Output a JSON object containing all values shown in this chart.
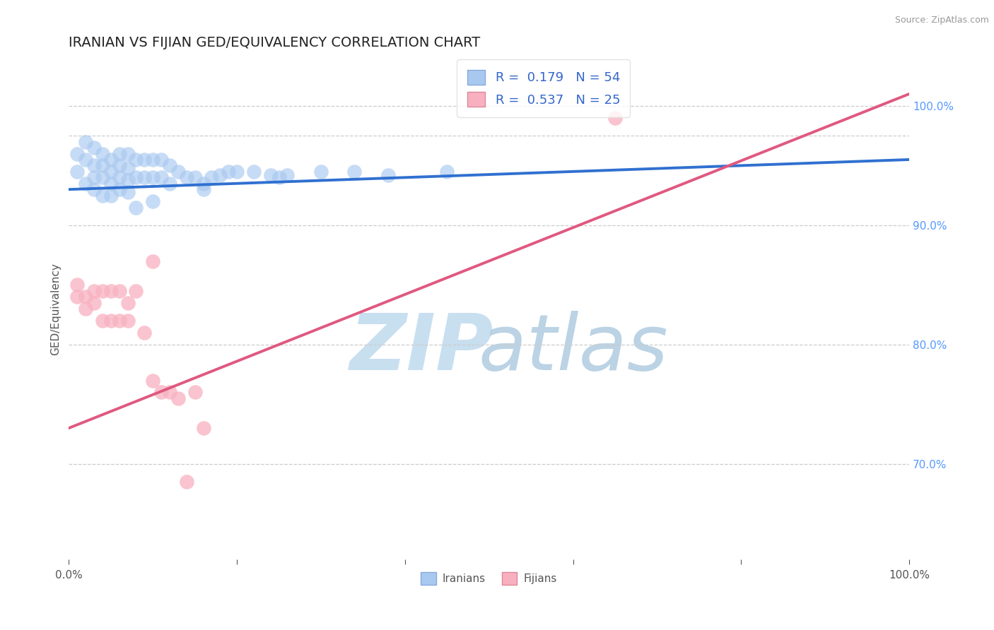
{
  "title": "IRANIAN VS FIJIAN GED/EQUIVALENCY CORRELATION CHART",
  "source": "Source: ZipAtlas.com",
  "ylabel": "GED/Equivalency",
  "right_ytick_values": [
    0.7,
    0.8,
    0.9,
    1.0
  ],
  "right_ytick_labels": [
    "70.0%",
    "80.0%",
    "90.0%",
    "100.0%"
  ],
  "iranian_R": 0.179,
  "iranian_N": 54,
  "fijian_R": 0.537,
  "fijian_N": 25,
  "iranian_color": "#a8c8f0",
  "fijian_color": "#f8b0c0",
  "iranian_line_color": "#3070d0",
  "fijian_line_color": "#e05880",
  "background_color": "#ffffff",
  "grid_color": "#cccccc",
  "title_fontsize": 14,
  "legend_fontsize": 13,
  "watermark_zip_color": "#c8dff0",
  "watermark_atlas_color": "#b0cce0",
  "xlim": [
    0.0,
    1.0
  ],
  "ylim": [
    0.62,
    1.04
  ],
  "dashed_line_y": 0.975,
  "iranian_scatter_x": [
    0.01,
    0.01,
    0.02,
    0.02,
    0.02,
    0.03,
    0.03,
    0.03,
    0.03,
    0.04,
    0.04,
    0.04,
    0.04,
    0.05,
    0.05,
    0.05,
    0.05,
    0.06,
    0.06,
    0.06,
    0.06,
    0.07,
    0.07,
    0.07,
    0.07,
    0.08,
    0.08,
    0.09,
    0.09,
    0.1,
    0.1,
    0.11,
    0.11,
    0.12,
    0.12,
    0.13,
    0.14,
    0.15,
    0.16,
    0.17,
    0.18,
    0.19,
    0.2,
    0.22,
    0.24,
    0.26,
    0.3,
    0.34,
    0.38,
    0.45,
    0.16,
    0.25,
    0.1,
    0.08
  ],
  "iranian_scatter_y": [
    0.96,
    0.945,
    0.97,
    0.955,
    0.935,
    0.965,
    0.95,
    0.94,
    0.93,
    0.96,
    0.95,
    0.94,
    0.925,
    0.955,
    0.945,
    0.935,
    0.925,
    0.96,
    0.95,
    0.94,
    0.93,
    0.96,
    0.948,
    0.938,
    0.928,
    0.955,
    0.94,
    0.955,
    0.94,
    0.955,
    0.94,
    0.955,
    0.94,
    0.95,
    0.935,
    0.945,
    0.94,
    0.94,
    0.935,
    0.94,
    0.942,
    0.945,
    0.945,
    0.945,
    0.942,
    0.942,
    0.945,
    0.945,
    0.942,
    0.945,
    0.93,
    0.94,
    0.92,
    0.915
  ],
  "fijian_scatter_x": [
    0.01,
    0.01,
    0.02,
    0.02,
    0.03,
    0.03,
    0.04,
    0.04,
    0.05,
    0.05,
    0.06,
    0.06,
    0.07,
    0.07,
    0.08,
    0.09,
    0.1,
    0.11,
    0.12,
    0.13,
    0.14,
    0.15,
    0.16,
    0.1,
    0.65
  ],
  "fijian_scatter_y": [
    0.85,
    0.84,
    0.84,
    0.83,
    0.845,
    0.835,
    0.845,
    0.82,
    0.845,
    0.82,
    0.845,
    0.82,
    0.835,
    0.82,
    0.845,
    0.81,
    0.77,
    0.76,
    0.76,
    0.755,
    0.685,
    0.76,
    0.73,
    0.87,
    0.99
  ],
  "iranian_trendline_x": [
    0.0,
    1.0
  ],
  "iranian_trendline_y": [
    0.93,
    0.955
  ],
  "fijian_trendline_x": [
    0.0,
    1.0
  ],
  "fijian_trendline_y": [
    0.73,
    1.01
  ]
}
